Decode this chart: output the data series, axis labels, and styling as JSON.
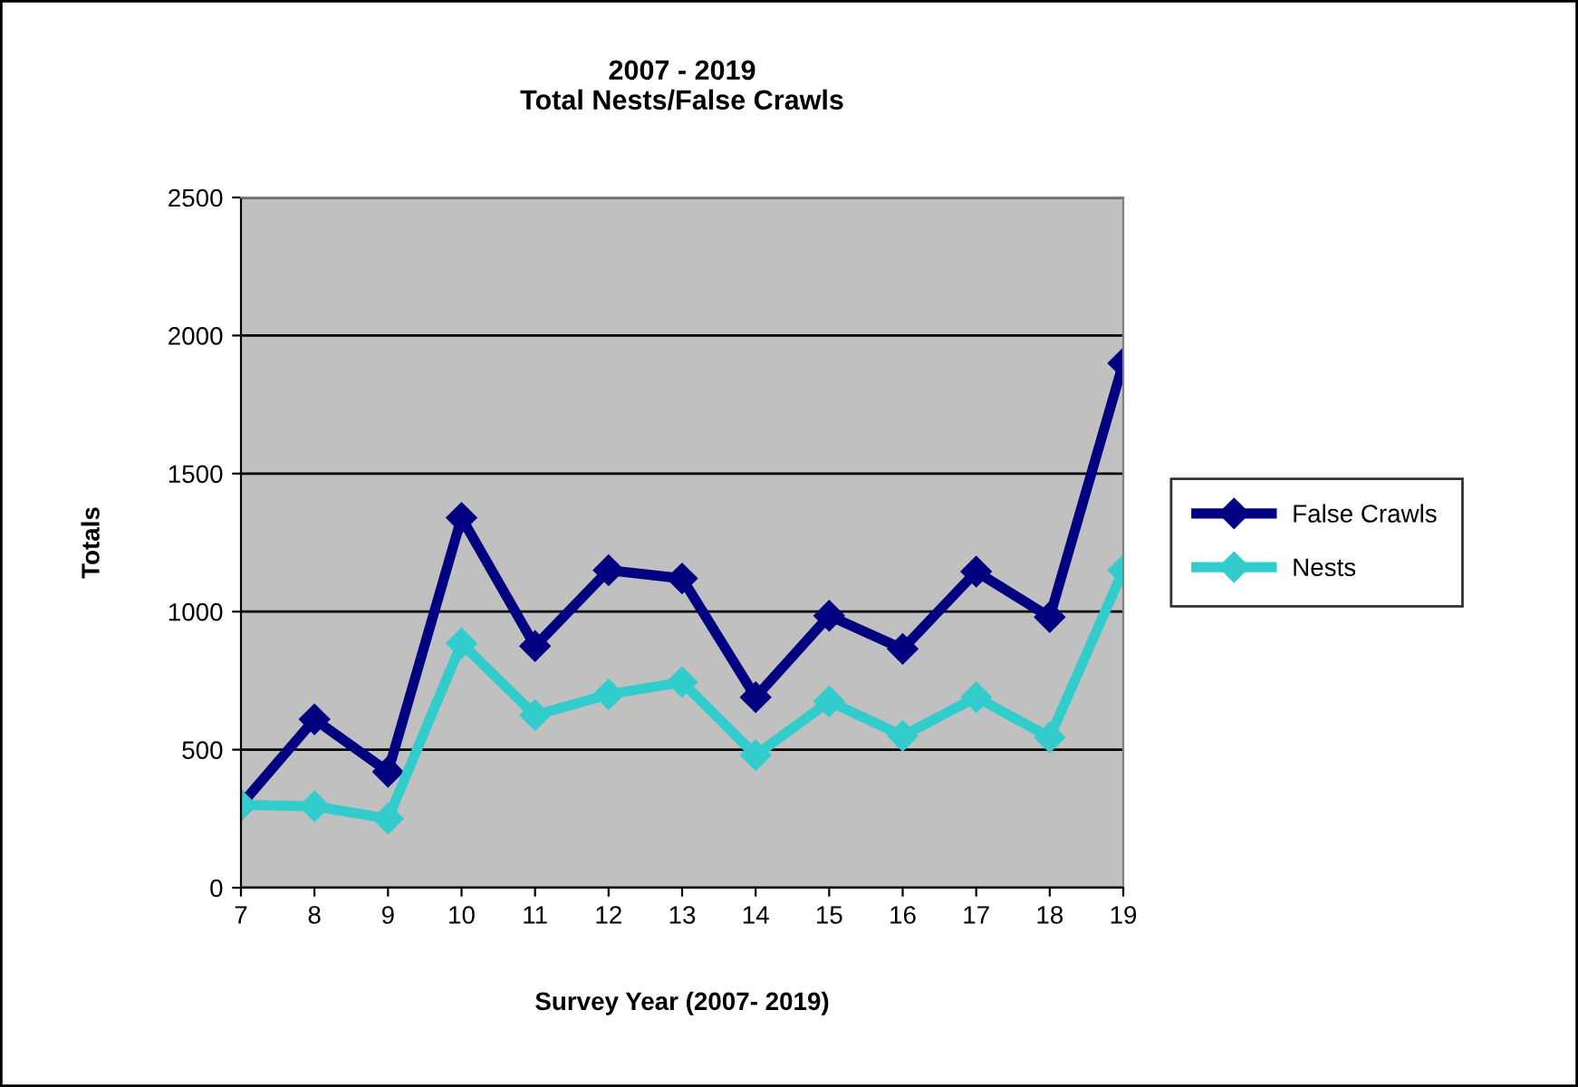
{
  "chart_data": {
    "type": "line",
    "title": "2007 - 2019\nTotal Nests/False Crawls",
    "xlabel": "Survey Year (2007- 2019)",
    "ylabel": "Totals",
    "x": [
      7,
      8,
      9,
      10,
      11,
      12,
      13,
      14,
      15,
      16,
      17,
      18,
      19
    ],
    "series": [
      {
        "name": "False Crawls",
        "color": "#000080",
        "values": [
          300,
          610,
          420,
          1340,
          875,
          1150,
          1120,
          690,
          985,
          865,
          1145,
          980,
          1900
        ]
      },
      {
        "name": "Nests",
        "color": "#33cccc",
        "values": [
          300,
          295,
          250,
          885,
          625,
          700,
          745,
          480,
          675,
          550,
          690,
          545,
          1150
        ]
      }
    ],
    "xlim": [
      7,
      19
    ],
    "xticks": [
      7,
      8,
      9,
      10,
      11,
      12,
      13,
      14,
      15,
      16,
      17,
      18,
      19
    ],
    "ylim": [
      0,
      2500
    ],
    "yticks": [
      0,
      500,
      1000,
      1500,
      2000,
      2500
    ],
    "grid": "y",
    "legend": "right",
    "marker": "diamond",
    "line_style": "solid"
  }
}
